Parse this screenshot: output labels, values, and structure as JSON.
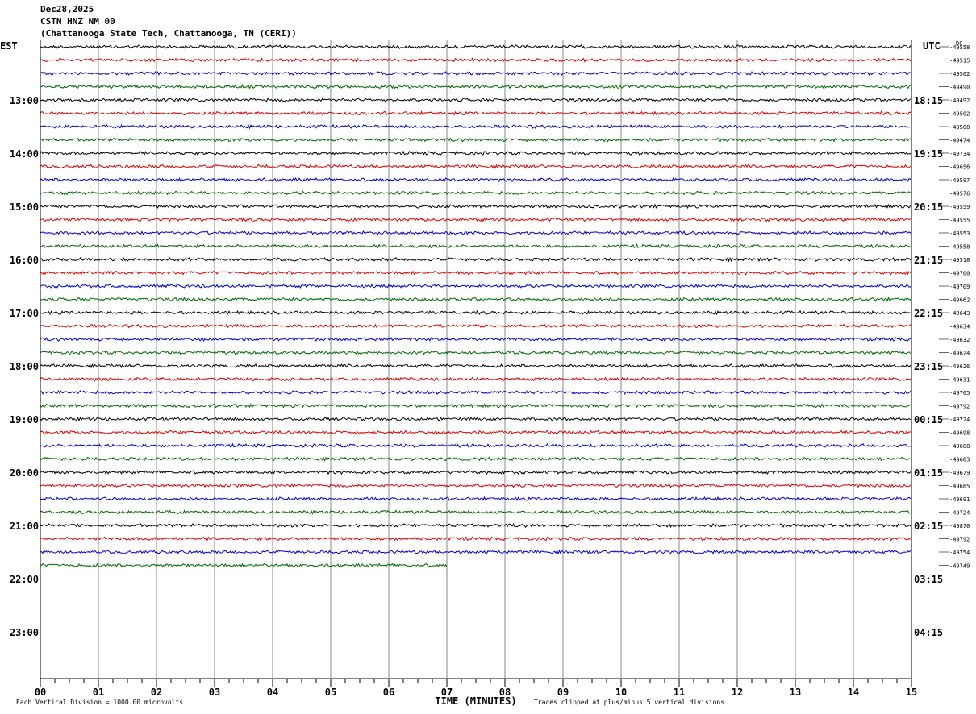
{
  "header": {
    "date": "Dec28,2025",
    "station": "CSTN HNZ NM 00",
    "location": "(Chattanooga State Tech, Chattanooga, TN (CERI))"
  },
  "chart_data": {
    "type": "line",
    "title": "Dec28,2025 CSTN HNZ NM 00 (Chattanooga State Tech, Chattanooga, TN (CERI))",
    "left_axis_label": "EST",
    "right_axis_label": "UTC",
    "dc_label": "DC",
    "xlabel": "TIME (MINUTES)",
    "x_ticks": [
      "00",
      "01",
      "02",
      "03",
      "04",
      "05",
      "06",
      "07",
      "08",
      "09",
      "10",
      "11",
      "12",
      "13",
      "14",
      "15"
    ],
    "xlim": [
      0,
      15
    ],
    "est_hour_labels": [
      {
        "label": "13:00",
        "row": 4
      },
      {
        "label": "14:00",
        "row": 8
      },
      {
        "label": "15:00",
        "row": 12
      },
      {
        "label": "16:00",
        "row": 16
      },
      {
        "label": "17:00",
        "row": 20
      },
      {
        "label": "18:00",
        "row": 24
      },
      {
        "label": "19:00",
        "row": 28
      },
      {
        "label": "20:00",
        "row": 32
      },
      {
        "label": "21:00",
        "row": 36
      },
      {
        "label": "22:00",
        "row": 40
      },
      {
        "label": "23:00",
        "row": 44
      }
    ],
    "utc_hour_labels": [
      {
        "label": "18:15",
        "row": 4
      },
      {
        "label": "19:15",
        "row": 8
      },
      {
        "label": "20:15",
        "row": 12
      },
      {
        "label": "21:15",
        "row": 16
      },
      {
        "label": "22:15",
        "row": 20
      },
      {
        "label": "23:15",
        "row": 24
      },
      {
        "label": "00:15",
        "row": 28
      },
      {
        "label": "01:15",
        "row": 32
      },
      {
        "label": "02:15",
        "row": 36
      },
      {
        "label": "03:15",
        "row": 40
      },
      {
        "label": "04:15",
        "row": 44
      }
    ],
    "total_rows": 48,
    "trace_colors": [
      "#000000",
      "#dd0000",
      "#0000cc",
      "#006600"
    ],
    "dc_offsets": [
      "-49558",
      "-49515",
      "-49502",
      "-49490",
      "-49492",
      "-49502",
      "-49508",
      "-49474",
      "-49734",
      "-49656",
      "-49597",
      "-49576",
      "-49559",
      "-49555",
      "-49553",
      "-49558",
      "-49518",
      "-49700",
      "-49709",
      "-49662",
      "-49643",
      "-49634",
      "-49632",
      "-49624",
      "-49626",
      "-49631",
      "-49705",
      "-49792",
      "-49724",
      "-49698",
      "-49688",
      "-49683",
      "-49679",
      "-49685",
      "-49691",
      "-49724",
      "-49870",
      "-49792",
      "-49754",
      "-49749"
    ],
    "trace_end_minutes": [
      15,
      15,
      15,
      15,
      15,
      15,
      15,
      15,
      15,
      15,
      15,
      15,
      15,
      15,
      15,
      15,
      15,
      15,
      15,
      15,
      15,
      15,
      15,
      15,
      15,
      15,
      15,
      15,
      15,
      15,
      15,
      15,
      15,
      15,
      15,
      15,
      15,
      15,
      15,
      7
    ]
  },
  "footer": {
    "scale_note": "Each Vertical Division = 1000.00 microvolts",
    "clip_note": "Traces clipped at plus/minus 5 vertical divisions"
  }
}
